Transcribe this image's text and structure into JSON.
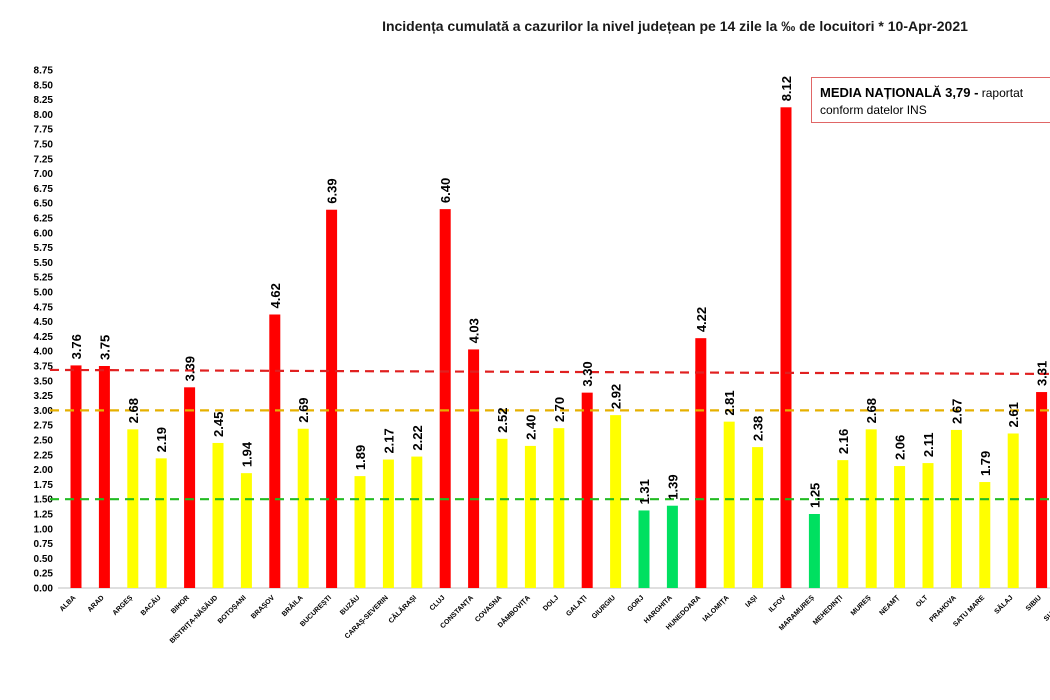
{
  "chart_data": {
    "type": "bar",
    "title": "Incidența cumulată a cazurilor la nivel județean pe 14 zile la ‰ de locuitori *   10-Apr-2021",
    "xlabel": "",
    "ylabel": "",
    "ylim": [
      0,
      8.75
    ],
    "ytick_step": 0.25,
    "grid": false,
    "categories": [
      "ALBA",
      "ARAD",
      "ARGEȘ",
      "BACĂU",
      "BIHOR",
      "BISTRIȚA-NĂSĂUD",
      "BOTOȘANI",
      "BRAȘOV",
      "BRĂILA",
      "BUCUREȘTI",
      "BUZĂU",
      "CARAȘ-SEVERIN",
      "CĂLĂRAȘI",
      "CLUJ",
      "CONSTANȚA",
      "COVASNA",
      "DÂMBOVIȚA",
      "DOLJ",
      "GALAȚI",
      "GIURGIU",
      "GORJ",
      "HARGHITA",
      "HUNEDOARA",
      "IALOMIȚA",
      "IAȘI",
      "ILFOV",
      "MARAMUREȘ",
      "MEHEDINȚI",
      "MUREȘ",
      "NEAMȚ",
      "OLT",
      "PRAHOVA",
      "SATU MARE",
      "SĂLAJ",
      "SIBIU",
      "SUCEAVA"
    ],
    "values": [
      3.76,
      3.75,
      2.68,
      2.19,
      3.39,
      2.45,
      1.94,
      4.62,
      2.69,
      6.39,
      1.89,
      2.17,
      2.22,
      6.4,
      4.03,
      2.52,
      2.4,
      2.7,
      3.3,
      2.92,
      1.31,
      1.39,
      4.22,
      2.81,
      2.38,
      8.12,
      1.25,
      2.16,
      2.68,
      2.06,
      2.11,
      2.67,
      1.79,
      2.61,
      3.31,
      null
    ],
    "value_labels": [
      "3.76",
      "3.75",
      "2.68",
      "2.19",
      "3.39",
      "2.45",
      "1.94",
      "4.62",
      "2.69",
      "6.39",
      "1.89",
      "2.17",
      "2.22",
      "6.40",
      "4.03",
      "2.52",
      "2.40",
      "2.70",
      "3.30",
      "2.92",
      "1.31",
      "1.39",
      "4.22",
      "2.81",
      "2.38",
      "8.12",
      "1.25",
      "2.16",
      "2.68",
      "2.06",
      "2.11",
      "2.67",
      "1.79",
      "2.61",
      "3.31",
      ""
    ],
    "reference_lines": [
      {
        "value": 1.5,
        "color": "#22bb22"
      },
      {
        "value": 3.0,
        "color": "#e6b000"
      },
      {
        "value": 3.65,
        "color": "#e02020"
      }
    ],
    "colors": {
      "red": "#ff0000",
      "yellow": "#ffff00",
      "green": "#00e060"
    },
    "thresholds": {
      "green_max": 1.5,
      "yellow_max": 3.0
    }
  },
  "media_box": {
    "bold": "MEDIA NAȚIONALĂ  3,79 -",
    "rest": " raportat",
    "line2": "conform datelor INS"
  }
}
